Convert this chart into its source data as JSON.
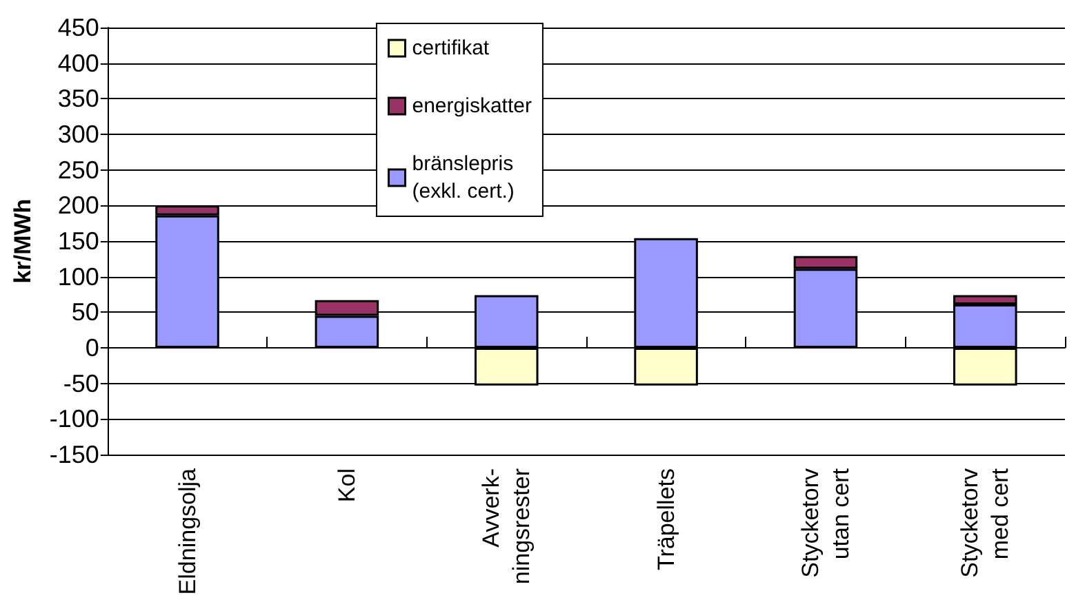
{
  "chart_data": {
    "type": "bar",
    "stacked": true,
    "ylabel": "kr/MWh",
    "categories": [
      "Eldningsolja",
      "Kol",
      "Avverk-\nningsrester",
      "Träpellets",
      "Stycketorv\nutan cert",
      "Stycketorv\nmed cert"
    ],
    "series": [
      {
        "name": "bränslepris\n(exkl. cert.)",
        "color": "#9999ff",
        "values": [
          186,
          45,
          74,
          154,
          111,
          61
        ]
      },
      {
        "name": "energiskatter",
        "color": "#993366",
        "values": [
          14,
          22,
          null,
          null,
          18,
          13
        ]
      },
      {
        "name": "certifikat",
        "color": "#ffffcc",
        "values": [
          null,
          null,
          -53,
          -53,
          null,
          -53
        ]
      }
    ],
    "ylim": [
      -150,
      450
    ],
    "yticks": [
      -150,
      -100,
      -50,
      0,
      50,
      100,
      150,
      200,
      250,
      300,
      350,
      400,
      450
    ],
    "grid": "y",
    "legend": "top"
  }
}
